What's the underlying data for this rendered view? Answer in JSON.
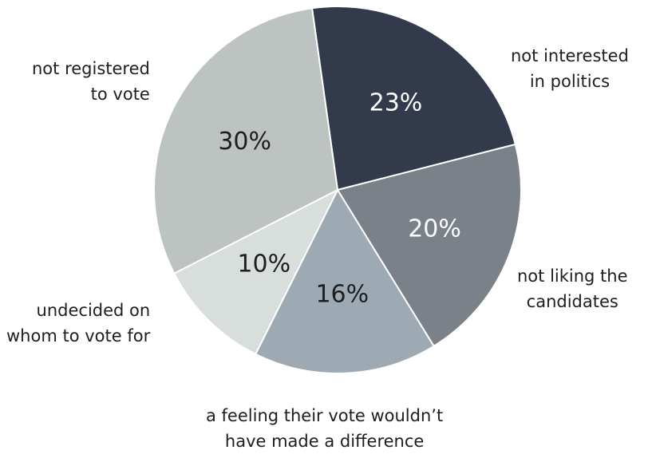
{
  "chart_data": {
    "type": "pie",
    "title": "",
    "slices": [
      {
        "label": "not interested\nin politics",
        "value": 23,
        "value_label": "23%",
        "color": "#323a4b",
        "text_color": "#ffffff"
      },
      {
        "label": "not liking the\ncandidates",
        "value": 20,
        "value_label": "20%",
        "color": "#7b8189",
        "text_color": "#ffffff"
      },
      {
        "label": "a feeling their vote wouldn’t\nhave made a difference",
        "value": 16,
        "value_label": "16%",
        "color": "#9eaab3",
        "text_color": "#1e1e1e"
      },
      {
        "label": "undecided on\nwhom to vote for",
        "value": 10,
        "value_label": "10%",
        "color": "#d8dedc",
        "text_color": "#1e1e1e"
      },
      {
        "label": "not registered\nto vote",
        "value": 30,
        "value_label": "30%",
        "color": "#bcc3c0",
        "text_color": "#1e1e1e"
      }
    ]
  }
}
